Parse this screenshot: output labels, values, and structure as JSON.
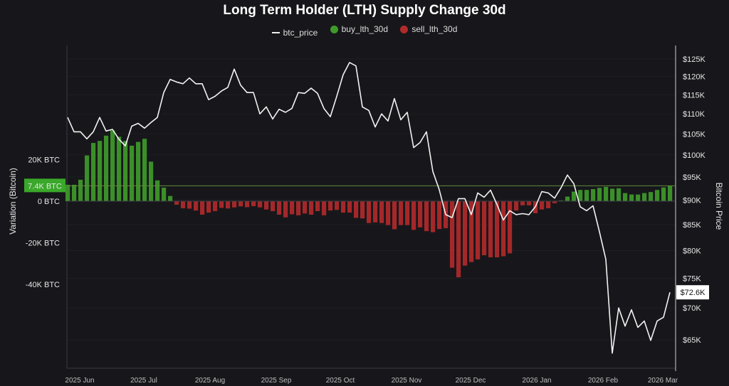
{
  "chart_data": {
    "type": "bar+line",
    "title": "Long Term Holder (LTH) Supply Change 30d",
    "legend": {
      "position": "top-center",
      "entries": [
        "btc_price",
        "buy_lth_30d",
        "sell_lth_30d"
      ]
    },
    "colors": {
      "btc_price": "#f2f2f2",
      "buy_lth_30d": "#3f9a2a",
      "sell_lth_30d": "#b12a2a",
      "background": "#17171b"
    },
    "ylabel_left": "Variation (Bitcoin)",
    "ylabel_right": "Bitcoin Price",
    "ylim_left": [
      -40000,
      36000
    ],
    "ylim_right_log": [
      63000,
      128000
    ],
    "right_scale": "log",
    "grid": true,
    "left_ticks": [
      {
        "value": 20000,
        "label": "20K BTC"
      },
      {
        "value": 0,
        "label": "0 BTC"
      },
      {
        "value": -20000,
        "label": "-20K BTC"
      },
      {
        "value": -40000,
        "label": "-40K BTC"
      }
    ],
    "right_ticks": [
      {
        "value": 125000,
        "label": "$125K"
      },
      {
        "value": 120000,
        "label": "$120K"
      },
      {
        "value": 115000,
        "label": "$115K"
      },
      {
        "value": 110000,
        "label": "$110K"
      },
      {
        "value": 105000,
        "label": "$105K"
      },
      {
        "value": 100000,
        "label": "$100K"
      },
      {
        "value": 95000,
        "label": "$95K"
      },
      {
        "value": 90000,
        "label": "$90K"
      },
      {
        "value": 85000,
        "label": "$85K"
      },
      {
        "value": 80000,
        "label": "$80K"
      },
      {
        "value": 75000,
        "label": "$75K"
      },
      {
        "value": 70000,
        "label": "$70K"
      },
      {
        "value": 65000,
        "label": "$65K"
      }
    ],
    "x_ticks": [
      {
        "date": "2025-06-01",
        "label": "2025 Jun"
      },
      {
        "date": "2025-07-01",
        "label": "2025 Jul"
      },
      {
        "date": "2025-08-01",
        "label": "2025 Aug"
      },
      {
        "date": "2025-09-01",
        "label": "2025 Sep"
      },
      {
        "date": "2025-10-01",
        "label": "2025 Oct"
      },
      {
        "date": "2025-11-01",
        "label": "2025 Nov"
      },
      {
        "date": "2025-12-01",
        "label": "2025 Dec"
      },
      {
        "date": "2026-01-01",
        "label": "2026 Jan"
      },
      {
        "date": "2026-02-01",
        "label": "2026 Feb"
      },
      {
        "date": "2026-03-01",
        "label": "2026 Mar"
      }
    ],
    "reference_line": {
      "value": 7400,
      "label": "7.4K BTC"
    },
    "last_price_label": {
      "value": 72600,
      "label": "$72.6K"
    },
    "dates": [
      "2025-06-01",
      "2025-06-04",
      "2025-06-07",
      "2025-06-10",
      "2025-06-13",
      "2025-06-16",
      "2025-06-19",
      "2025-06-22",
      "2025-06-25",
      "2025-06-28",
      "2025-07-01",
      "2025-07-04",
      "2025-07-07",
      "2025-07-10",
      "2025-07-13",
      "2025-07-16",
      "2025-07-19",
      "2025-07-22",
      "2025-07-25",
      "2025-07-28",
      "2025-07-31",
      "2025-08-03",
      "2025-08-06",
      "2025-08-09",
      "2025-08-12",
      "2025-08-15",
      "2025-08-18",
      "2025-08-21",
      "2025-08-24",
      "2025-08-27",
      "2025-08-30",
      "2025-09-02",
      "2025-09-05",
      "2025-09-08",
      "2025-09-11",
      "2025-09-14",
      "2025-09-17",
      "2025-09-20",
      "2025-09-23",
      "2025-09-26",
      "2025-09-29",
      "2025-10-02",
      "2025-10-05",
      "2025-10-08",
      "2025-10-11",
      "2025-10-14",
      "2025-10-17",
      "2025-10-20",
      "2025-10-23",
      "2025-10-26",
      "2025-10-29",
      "2025-11-01",
      "2025-11-04",
      "2025-11-07",
      "2025-11-10",
      "2025-11-13",
      "2025-11-16",
      "2025-11-19",
      "2025-11-22",
      "2025-11-25",
      "2025-11-28",
      "2025-12-01",
      "2025-12-04",
      "2025-12-07",
      "2025-12-10",
      "2025-12-13",
      "2025-12-16",
      "2025-12-19",
      "2025-12-22",
      "2025-12-25",
      "2025-12-28",
      "2025-12-31",
      "2026-01-03",
      "2026-01-06",
      "2026-01-09",
      "2026-01-12",
      "2026-01-15",
      "2026-01-18",
      "2026-01-21",
      "2026-01-24",
      "2026-01-27",
      "2026-01-30",
      "2026-02-02",
      "2026-02-05",
      "2026-02-08",
      "2026-02-11",
      "2026-02-14",
      "2026-02-17",
      "2026-02-20",
      "2026-02-23",
      "2026-02-26",
      "2026-03-01",
      "2026-03-04",
      "2026-03-07",
      "2026-03-10"
    ],
    "btc_price": [
      109100,
      105500,
      105500,
      103800,
      105500,
      109100,
      105700,
      106100,
      103700,
      102100,
      106900,
      107600,
      106400,
      107800,
      109100,
      115600,
      119200,
      118500,
      118000,
      119600,
      118000,
      118000,
      113700,
      114600,
      116000,
      117000,
      122100,
      117600,
      115600,
      115600,
      110000,
      111800,
      108700,
      111200,
      110400,
      111400,
      115600,
      115400,
      116800,
      115400,
      111400,
      109300,
      114600,
      120500,
      124000,
      123000,
      111800,
      110900,
      106700,
      110000,
      108200,
      114000,
      108500,
      110400,
      101700,
      102900,
      105500,
      96200,
      92200,
      87000,
      86400,
      90300,
      90300,
      87000,
      91500,
      90600,
      92100,
      89100,
      85900,
      87800,
      87000,
      87200,
      87000,
      88600,
      91800,
      91500,
      90400,
      92600,
      95400,
      93500,
      88600,
      87800,
      88800,
      83600,
      78400,
      63000,
      70000,
      67100,
      69700,
      66900,
      67900,
      64900,
      67900,
      68500,
      72600
    ],
    "lth_supply_change_30d": [
      7900,
      7900,
      10300,
      22000,
      28000,
      29000,
      31500,
      34000,
      31000,
      29000,
      26700,
      28500,
      30000,
      19000,
      10000,
      6500,
      2500,
      -1700,
      -3400,
      -3600,
      -4500,
      -6500,
      -5500,
      -4800,
      -3200,
      -3500,
      -3000,
      -2500,
      -2900,
      -2400,
      -3000,
      -4000,
      -4800,
      -6500,
      -7800,
      -6300,
      -6800,
      -5900,
      -6500,
      -4800,
      -6800,
      -4500,
      -4200,
      -5500,
      -5500,
      -8000,
      -8300,
      -10500,
      -10200,
      -10500,
      -11500,
      -13500,
      -11500,
      -11500,
      -13800,
      -12600,
      -14400,
      -14900,
      -13400,
      -13000,
      -32000,
      -36600,
      -31000,
      -29300,
      -28000,
      -26000,
      -27000,
      -27000,
      -26500,
      -25100,
      -4500,
      -2000,
      -2000,
      -5800,
      -4000,
      -3400,
      -1000,
      300,
      2200,
      4600,
      5400,
      5400,
      5800,
      6400,
      6900,
      6000,
      6200,
      3900,
      3200,
      3200,
      3900,
      4400,
      5400,
      6600,
      7400
    ]
  }
}
